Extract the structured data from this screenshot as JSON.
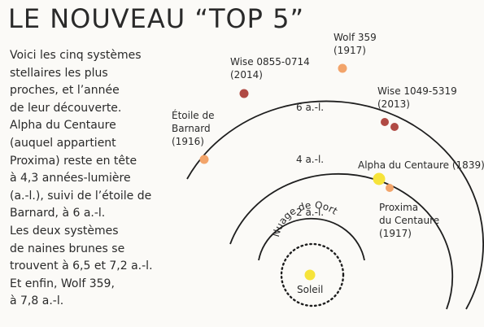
{
  "title": "LE NOUVEAU “TOP 5”",
  "description_lines": [
    "Voici les cinq systèmes",
    "stellaires les plus",
    "proches, et l’année",
    "de leur découverte.",
    "Alpha du Centaure",
    "(auquel appartient",
    "Proxima) reste en tête",
    "à 4,3 années-lumière",
    "(a.-l.), suivi de l’étoile de",
    "Barnard, à 6 a.-l.",
    "Les deux systèmes",
    "de naines brunes se",
    "trouvent à 6,5 et 7,2 a.-l.",
    "Et enfin, Wolf 359,",
    "à 7,8 a.-l."
  ],
  "rings": {
    "r2": "2 a.-l.",
    "r4": "4 a.-l.",
    "r6": "6 a.-l."
  },
  "oort_label": "Nuage de Oort",
  "sun_label": "Soleil",
  "stars": {
    "wolf": [
      "Wolf 359",
      "(1917)"
    ],
    "wise0855": [
      "Wise 0855-0714",
      "(2014)"
    ],
    "wise1049": [
      "Wise 1049-5319",
      "(2013)"
    ],
    "barnard": [
      "Étoile de",
      "Barnard",
      "(1916)"
    ],
    "alpha": [
      "Alpha du Centaure (1839)"
    ],
    "proxima": [
      "Proxima",
      "du Centaure",
      "(1917)"
    ]
  },
  "colors": {
    "sun": "#f6e33a",
    "orange_star": "#f2a46a",
    "brown_dwarf": "#b04a44",
    "ring": "#1e1e1e"
  }
}
